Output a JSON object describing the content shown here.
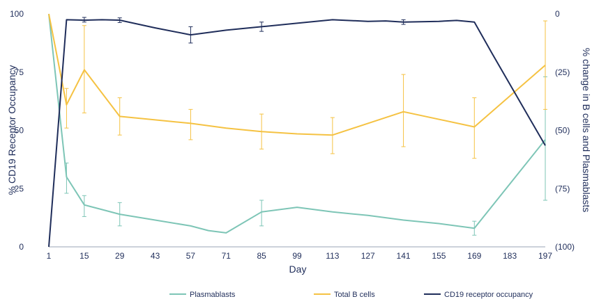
{
  "chart_data": {
    "type": "line",
    "title": "",
    "xlabel": "Day",
    "ylabel_left": "% CD19 Receptor Occupancy",
    "ylabel_right": "% change in B cells and Plasmablasts",
    "x_ticks": [
      1,
      15,
      29,
      43,
      57,
      71,
      85,
      99,
      113,
      127,
      141,
      155,
      169,
      183,
      197
    ],
    "x_range": [
      1,
      197
    ],
    "y_left": {
      "range": [
        0,
        100
      ],
      "ticks": [
        0,
        25,
        50,
        75,
        100
      ],
      "tick_labels": [
        "0",
        "25",
        "50",
        "75",
        "100"
      ]
    },
    "y_right": {
      "range": [
        0,
        -100
      ],
      "ticks": [
        0,
        -25,
        -50,
        -75,
        -100
      ],
      "tick_labels": [
        "0",
        "(25)",
        "(50)",
        "(75)",
        "(100)"
      ]
    },
    "grid": false,
    "legend_position": "bottom",
    "series": [
      {
        "name": "Plasmablasts",
        "axis": "right",
        "color": "#7dc5b6",
        "points": [
          [
            1,
            0
          ],
          [
            8,
            -70
          ],
          [
            15,
            -82
          ],
          [
            22,
            -84
          ],
          [
            29,
            -86
          ],
          [
            43,
            -88.5
          ],
          [
            57,
            -91
          ],
          [
            64,
            -93
          ],
          [
            71,
            -94
          ],
          [
            85,
            -85
          ],
          [
            99,
            -83
          ],
          [
            113,
            -85
          ],
          [
            127,
            -86.5
          ],
          [
            141,
            -88.5
          ],
          [
            155,
            -90
          ],
          [
            169,
            -92
          ],
          [
            197,
            -54
          ]
        ],
        "error_bars": [
          [
            8,
            -64,
            -77
          ],
          [
            15,
            -78,
            -87
          ],
          [
            29,
            -81,
            -91
          ],
          [
            85,
            -80,
            -91
          ],
          [
            169,
            -89,
            -95
          ],
          [
            197,
            -27,
            -80
          ]
        ]
      },
      {
        "name": "Total B cells",
        "axis": "right",
        "color": "#f5c242",
        "points": [
          [
            1,
            0
          ],
          [
            8,
            -39
          ],
          [
            15,
            -24
          ],
          [
            29,
            -44
          ],
          [
            43,
            -45.5
          ],
          [
            57,
            -47
          ],
          [
            71,
            -49
          ],
          [
            85,
            -50.5
          ],
          [
            99,
            -51.5
          ],
          [
            113,
            -52
          ],
          [
            127,
            -47
          ],
          [
            141,
            -42
          ],
          [
            169,
            -48.5
          ],
          [
            197,
            -22
          ]
        ],
        "error_bars": [
          [
            8,
            -32,
            -49
          ],
          [
            15,
            -5,
            -42.5
          ],
          [
            29,
            -36,
            -52
          ],
          [
            57,
            -41,
            -54
          ],
          [
            85,
            -43,
            -58
          ],
          [
            113,
            -44.5,
            -60
          ],
          [
            141,
            -26,
            -57
          ],
          [
            169,
            -36,
            -62
          ],
          [
            197,
            -3,
            -41
          ]
        ]
      },
      {
        "name": "CD19 receptor occupancy",
        "axis": "left",
        "color": "#1f2d5a",
        "points": [
          [
            1,
            0
          ],
          [
            8,
            97.5
          ],
          [
            15,
            97.3
          ],
          [
            22,
            97.5
          ],
          [
            29,
            97.3
          ],
          [
            43,
            94
          ],
          [
            57,
            91
          ],
          [
            71,
            93
          ],
          [
            85,
            94.5
          ],
          [
            99,
            96
          ],
          [
            113,
            97.5
          ],
          [
            127,
            96.8
          ],
          [
            134,
            97
          ],
          [
            141,
            96.5
          ],
          [
            155,
            96.8
          ],
          [
            162,
            97.2
          ],
          [
            169,
            96.5
          ],
          [
            176,
            83
          ],
          [
            197,
            43.5
          ]
        ],
        "error_bars": [
          [
            15,
            96.5,
            98.5
          ],
          [
            29,
            96.3,
            98.3
          ],
          [
            57,
            87.5,
            94.5
          ],
          [
            85,
            92.5,
            96.5
          ],
          [
            141,
            95.5,
            97.5
          ]
        ]
      }
    ]
  }
}
